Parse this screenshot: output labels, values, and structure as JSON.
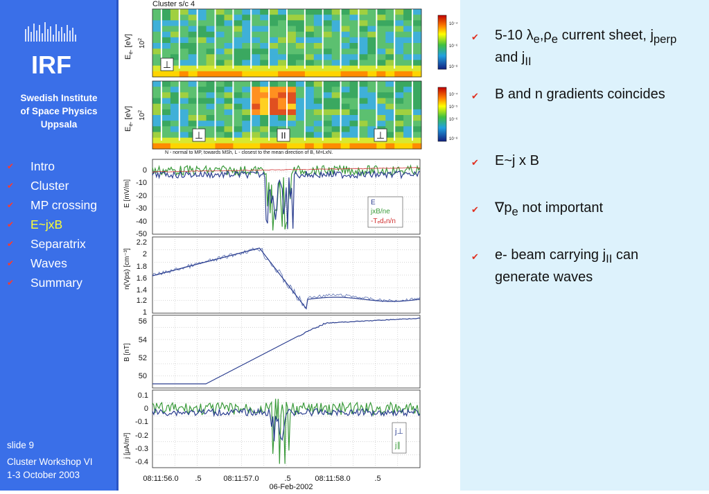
{
  "sidebar": {
    "logo_text": "IRF",
    "institute_lines": [
      "Swedish Institute",
      "of Space Physics",
      "Uppsala"
    ],
    "nav": [
      {
        "label": "Intro",
        "active": false
      },
      {
        "label": "Cluster",
        "active": false
      },
      {
        "label": "MP crossing",
        "active": false
      },
      {
        "label": "E~jxB",
        "active": true
      },
      {
        "label": "Separatrix",
        "active": false
      },
      {
        "label": "Waves",
        "active": false
      },
      {
        "label": "Summary",
        "active": false
      }
    ],
    "slide_label": "slide 9",
    "event_line1": "Cluster Workshop VI",
    "event_line2": "1-3 October 2003",
    "colors": {
      "background": "#3a6fe8",
      "active_item": "#ffff33",
      "checkmark": "#ff3a2a"
    }
  },
  "figure": {
    "spacecraft_label": "Cluster s/c 4",
    "spectrogram_ylabel": "E",
    "spectrogram_ysub": "e-",
    "spectrogram_yunit": " [eV]",
    "spectrogram_tick": "10",
    "spectrogram_tick_exp": "2",
    "spec1_markers": [
      "⊥"
    ],
    "spec2_markers": [
      "⊥",
      "II",
      "⊥"
    ],
    "colorbar1_ticks": [
      "10⁻⁴",
      "10⁻⁶",
      "10⁻⁸"
    ],
    "colorbar2_ticks": [
      "10⁻⁴",
      "10⁻⁵",
      "10⁻⁶",
      "10⁻⁸"
    ],
    "caption": "N - normal to MP, towards MSh, L - closest to the mean direction of B, M=LxN.",
    "panels": [
      {
        "ylabel": "E [mV/m]",
        "yticks": [
          "0",
          "-10",
          "-20",
          "-30",
          "-40",
          "-50"
        ],
        "legend": [
          {
            "text": "E",
            "color": "#2a3d8f"
          },
          {
            "text": "jxB/ne",
            "color": "#3a9a3a"
          },
          {
            "text": "-Tₑdₓn/n",
            "color": "#d03030"
          }
        ]
      },
      {
        "ylabel": "n(Vps) [cm⁻³]",
        "yticks": [
          "2.2",
          "2",
          "1.8",
          "1.6",
          "1.4",
          "1.2",
          "1"
        ]
      },
      {
        "ylabel": "B [nT]",
        "yticks": [
          "56",
          "54",
          "52",
          "50"
        ]
      },
      {
        "ylabel": "j [μA/m²]",
        "yticks": [
          "0.1",
          "0",
          "-0.1",
          "-0.2",
          "-0.3",
          "-0.4"
        ],
        "legend": [
          {
            "text": "j⊥",
            "color": "#2a3d8f"
          },
          {
            "text": "j∥",
            "color": "#3a9a3a"
          }
        ]
      }
    ],
    "xticks": [
      "08:11:56.0",
      ".5",
      "08:11:57.0",
      ".5",
      "08:11:58.0",
      ".5"
    ],
    "date_label": "06-Feb-2002"
  },
  "bullets": [
    {
      "html": "5-10 &lambda;<sub>e</sub>,&rho;<sub>e</sub> current sheet, j<sub>perp</sub> and j<sub>II</sub>"
    },
    {
      "html": "B and n gradients coincides"
    },
    {
      "html": "E~j x B"
    },
    {
      "html": "&nabla;p<sub>e</sub> not important"
    },
    {
      "html": "e- beam carrying j<sub>II</sub> can generate waves"
    }
  ]
}
